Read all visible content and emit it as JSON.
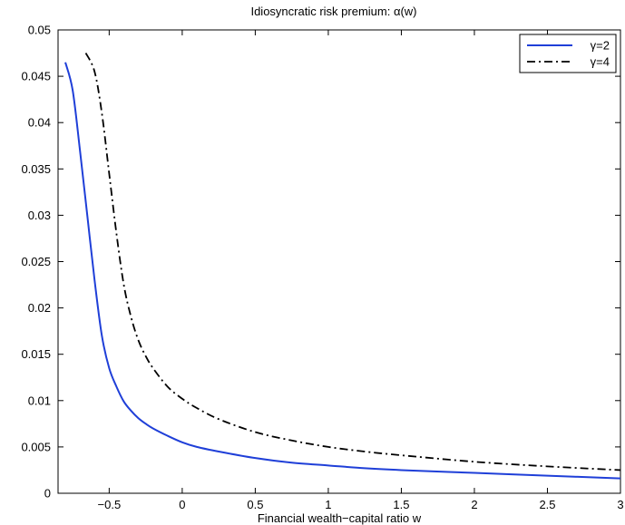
{
  "chart_data": {
    "type": "line",
    "title": "Idiosyncratic risk premium: α(w)",
    "xlabel": "Financial wealth−capital ratio w",
    "ylabel": "",
    "xlim": [
      -0.85,
      3
    ],
    "ylim": [
      0,
      0.05
    ],
    "xticks": [
      -0.5,
      0,
      0.5,
      1,
      1.5,
      2,
      2.5,
      3
    ],
    "xtick_labels": [
      "−0.5",
      "0",
      "0.5",
      "1",
      "1.5",
      "2",
      "2.5",
      "3"
    ],
    "yticks": [
      0,
      0.005,
      0.01,
      0.015,
      0.02,
      0.025,
      0.03,
      0.035,
      0.04,
      0.045,
      0.05
    ],
    "ytick_labels": [
      "0",
      "0.005",
      "0.01",
      "0.015",
      "0.02",
      "0.025",
      "0.03",
      "0.035",
      "0.04",
      "0.045",
      "0.05"
    ],
    "grid": false,
    "legend_position": "top-right",
    "series": [
      {
        "name": "γ=2",
        "color": "#1f3fd8",
        "style": "solid",
        "x": [
          -0.8,
          -0.75,
          -0.7,
          -0.65,
          -0.6,
          -0.55,
          -0.5,
          -0.45,
          -0.4,
          -0.35,
          -0.3,
          -0.25,
          -0.2,
          -0.1,
          0,
          0.1,
          0.25,
          0.5,
          0.75,
          1,
          1.25,
          1.5,
          2,
          2.5,
          3
        ],
        "y": [
          0.0465,
          0.0435,
          0.037,
          0.03,
          0.023,
          0.017,
          0.0135,
          0.0115,
          0.0099,
          0.0089,
          0.0081,
          0.0075,
          0.007,
          0.0062,
          0.0055,
          0.005,
          0.0045,
          0.0038,
          0.0033,
          0.003,
          0.0027,
          0.0025,
          0.0022,
          0.0019,
          0.0016
        ]
      },
      {
        "name": "γ=4",
        "color": "#000000",
        "style": "dashdot",
        "x": [
          -0.66,
          -0.6,
          -0.55,
          -0.5,
          -0.45,
          -0.4,
          -0.35,
          -0.3,
          -0.25,
          -0.2,
          -0.1,
          0,
          0.1,
          0.25,
          0.5,
          0.75,
          1,
          1.25,
          1.5,
          2,
          2.5,
          3
        ],
        "y": [
          0.0475,
          0.0455,
          0.041,
          0.0345,
          0.028,
          0.0225,
          0.019,
          0.0165,
          0.0148,
          0.0135,
          0.0115,
          0.0102,
          0.0092,
          0.008,
          0.0066,
          0.0057,
          0.005,
          0.0045,
          0.0041,
          0.0034,
          0.0029,
          0.0025
        ]
      }
    ]
  }
}
